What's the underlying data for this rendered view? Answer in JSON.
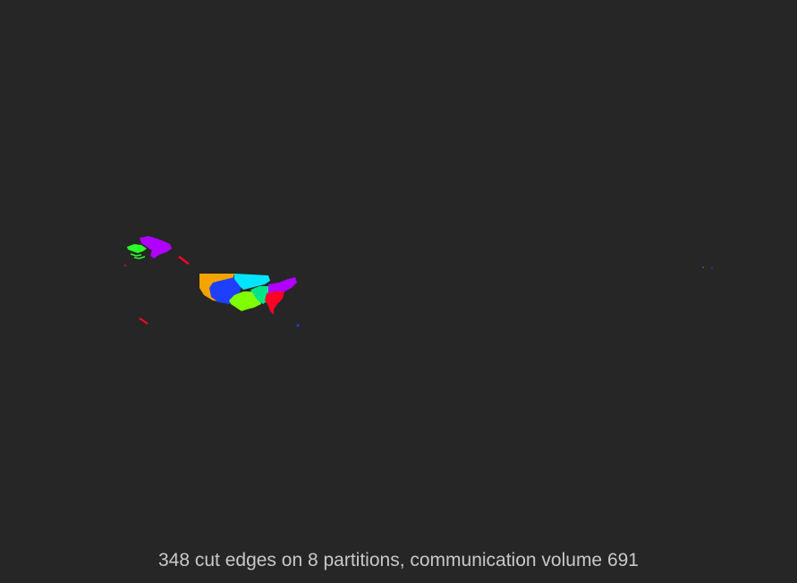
{
  "caption": "348 cut edges on 8 partitions, communication volume 691",
  "partitions": [
    {
      "id": 0,
      "color": "#f5a300"
    },
    {
      "id": 1,
      "color": "#1f3fff"
    },
    {
      "id": 2,
      "color": "#00e5ff"
    },
    {
      "id": 3,
      "color": "#7fff00"
    },
    {
      "id": 4,
      "color": "#00e58a"
    },
    {
      "id": 5,
      "color": "#b000ff"
    },
    {
      "id": 6,
      "color": "#ff0026"
    },
    {
      "id": 7,
      "color": "#2aff2a"
    }
  ]
}
